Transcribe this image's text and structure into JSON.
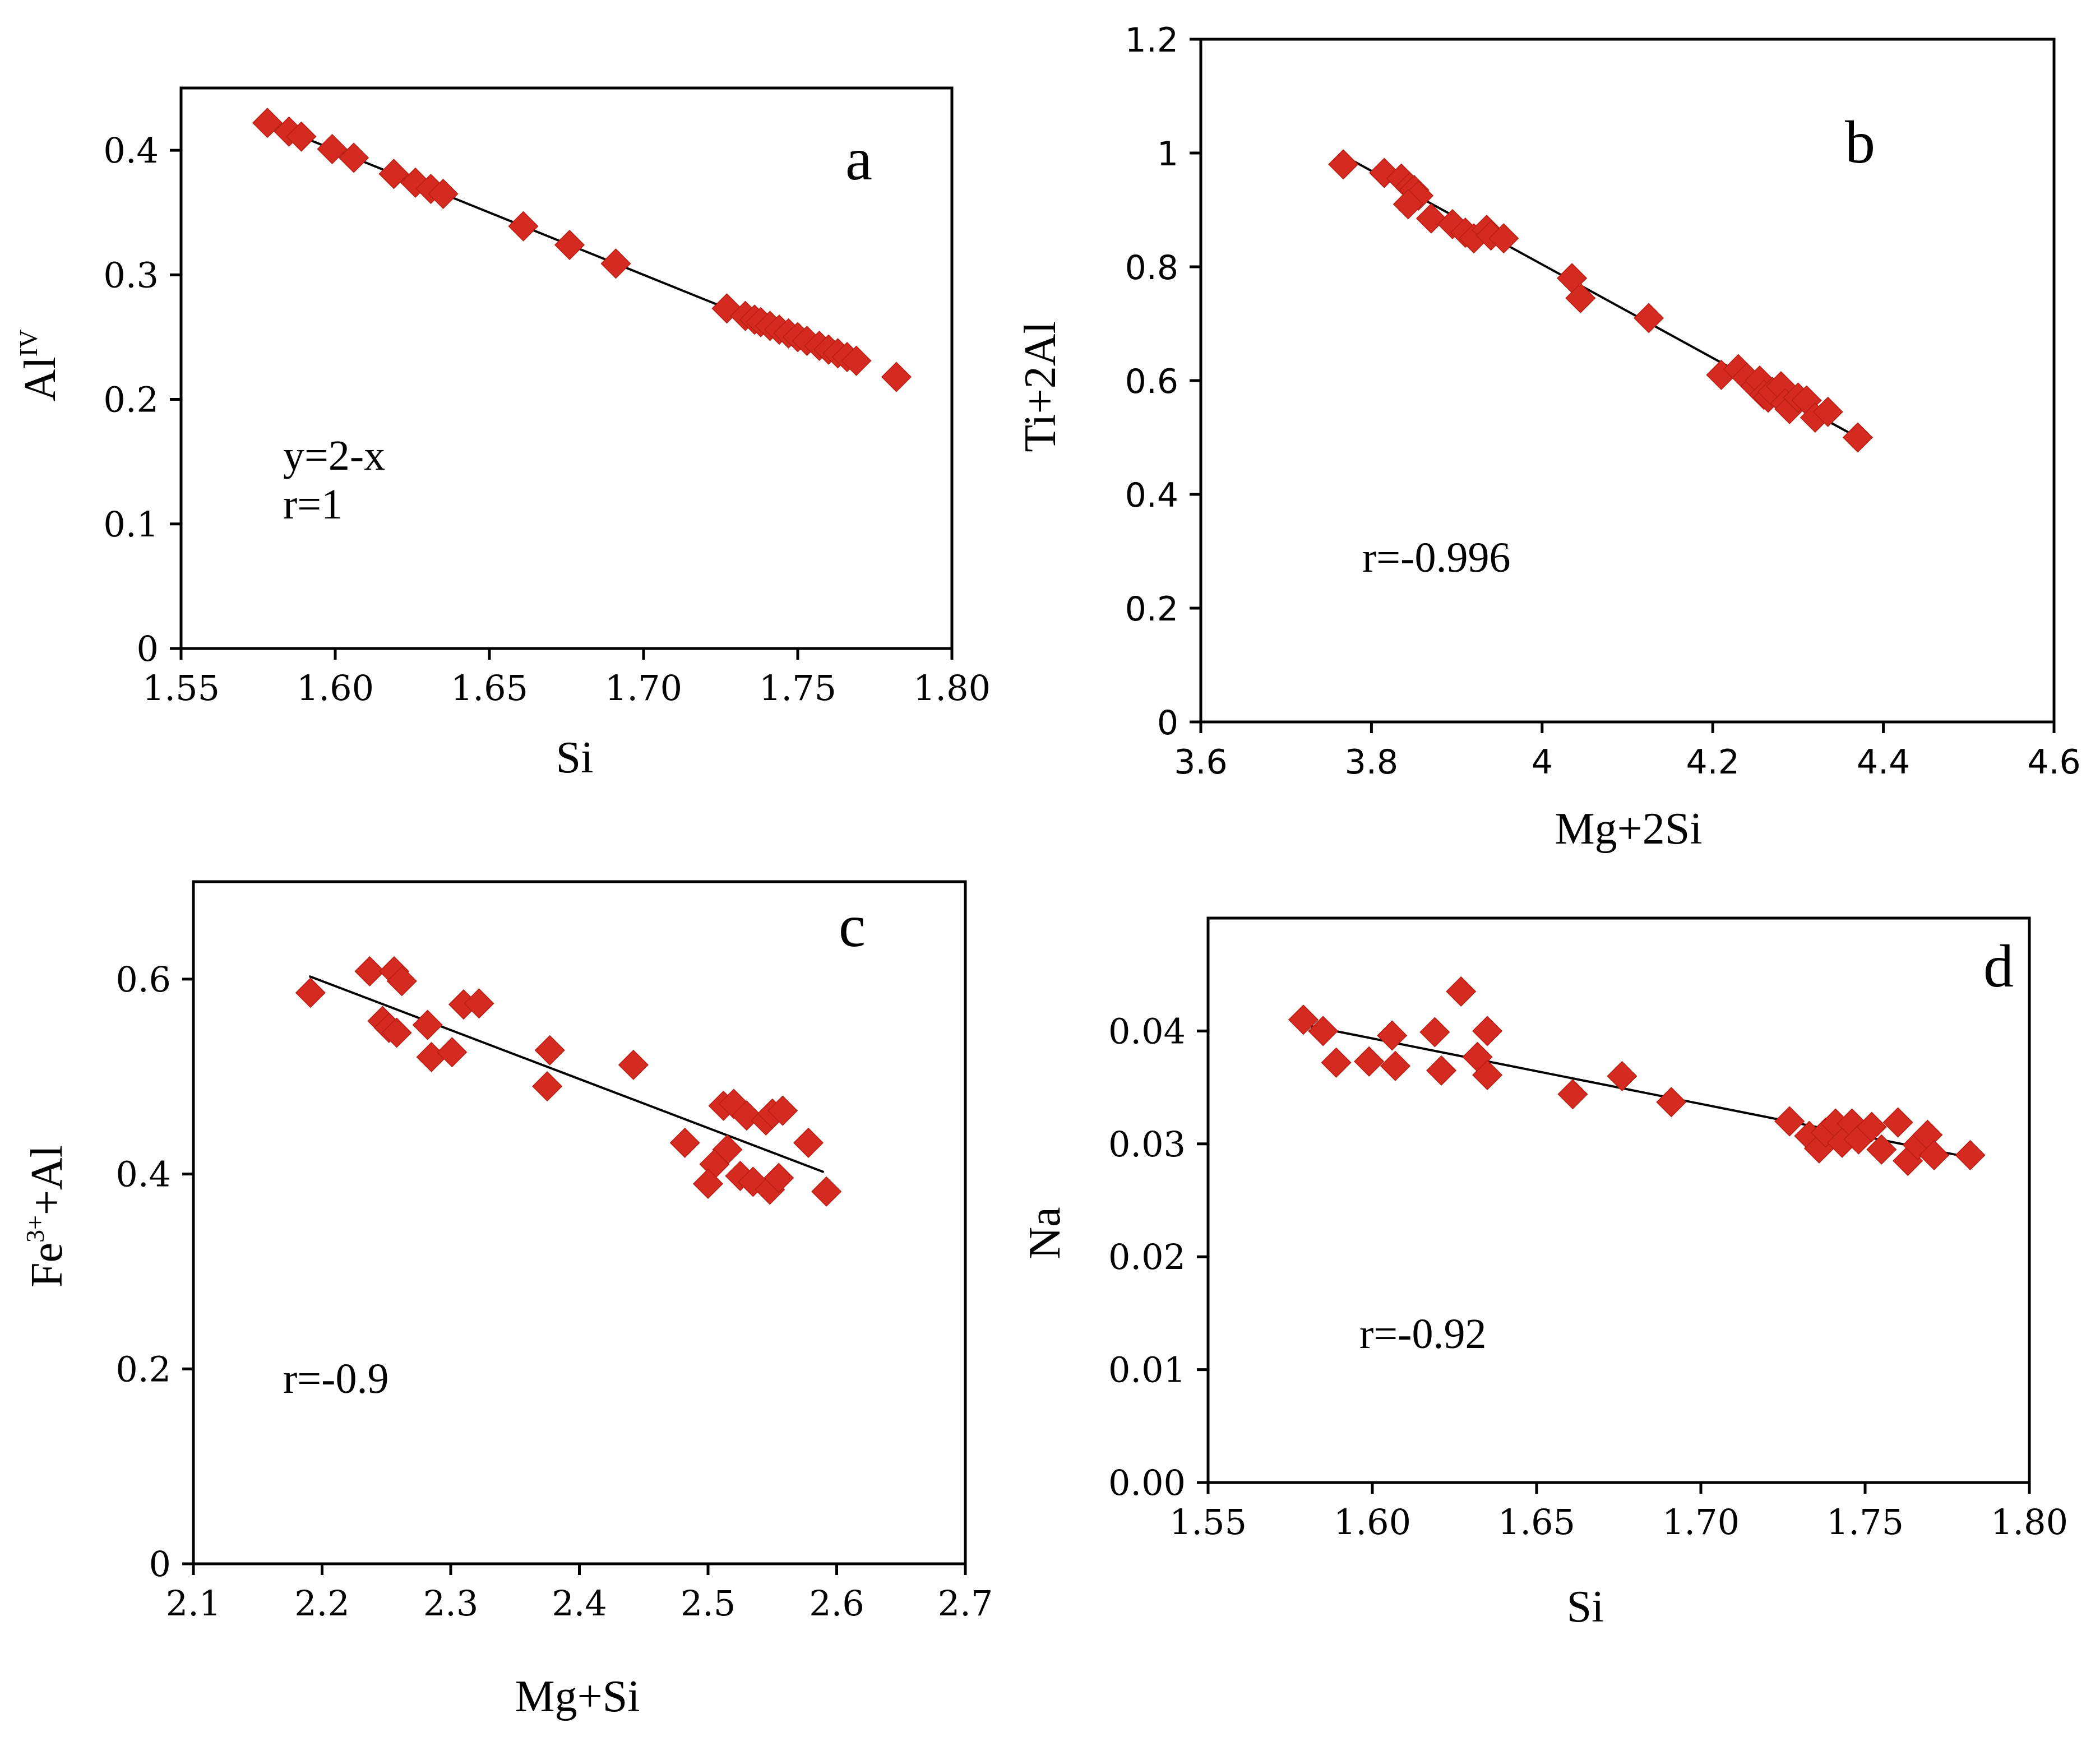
{
  "chart_data": [
    {
      "panel": "a",
      "type": "scatter",
      "panel_label": "a",
      "xlabel": "Si",
      "ylabel_main": "Al",
      "ylabel_sup": "IV",
      "xlim": [
        1.55,
        1.8
      ],
      "ylim": [
        0,
        0.45
      ],
      "xticks": [
        1.55,
        1.6,
        1.65,
        1.7,
        1.75,
        1.8
      ],
      "xtick_labels": [
        "1.55",
        "1.60",
        "1.65",
        "1.70",
        "1.75",
        "1.80"
      ],
      "yticks": [
        0,
        0.1,
        0.2,
        0.3,
        0.4
      ],
      "ytick_labels": [
        "0",
        "0.1",
        "0.2",
        "0.3",
        "0.4"
      ],
      "annotations": [
        "y=2-x",
        "r=1"
      ],
      "marker_color": "#d42a20",
      "trendline": {
        "x": [
          1.58,
          1.77
        ],
        "y": [
          0.42,
          0.23
        ]
      },
      "points": {
        "x": [
          1.578,
          1.585,
          1.589,
          1.599,
          1.606,
          1.619,
          1.626,
          1.631,
          1.635,
          1.661,
          1.676,
          1.691,
          1.727,
          1.733,
          1.736,
          1.738,
          1.741,
          1.744,
          1.747,
          1.75,
          1.753,
          1.757,
          1.76,
          1.763,
          1.766,
          1.769,
          1.782
        ],
        "y": [
          0.422,
          0.415,
          0.411,
          0.401,
          0.394,
          0.381,
          0.374,
          0.369,
          0.365,
          0.339,
          0.324,
          0.309,
          0.273,
          0.267,
          0.264,
          0.262,
          0.259,
          0.256,
          0.253,
          0.25,
          0.247,
          0.243,
          0.24,
          0.237,
          0.234,
          0.231,
          0.218
        ]
      }
    },
    {
      "panel": "b",
      "type": "scatter",
      "panel_label": "b",
      "xlabel": "Mg+2Si",
      "ylabel": "Ti+2Al",
      "xlim": [
        3.6,
        4.6
      ],
      "ylim": [
        0,
        1.2
      ],
      "xticks": [
        3.6,
        3.8,
        4.0,
        4.2,
        4.4,
        4.6
      ],
      "xtick_labels": [
        "3.6",
        "3.8",
        "4",
        "4.2",
        "4.4",
        "4.6"
      ],
      "yticks": [
        0,
        0.2,
        0.4,
        0.6,
        0.8,
        1.0,
        1.2
      ],
      "ytick_labels": [
        "0",
        "0.2",
        "0.4",
        "0.6",
        "0.8",
        "1",
        "1.2"
      ],
      "annotations": [
        "r=-0.996"
      ],
      "marker_color": "#d42a20",
      "trendline": {
        "x": [
          3.78,
          4.37
        ],
        "y": [
          0.985,
          0.5
        ]
      },
      "points": {
        "x": [
          3.767,
          3.815,
          3.835,
          3.845,
          3.85,
          3.855,
          3.843,
          3.87,
          3.895,
          3.91,
          3.92,
          3.935,
          3.94,
          3.955,
          4.035,
          4.045,
          4.125,
          4.21,
          4.23,
          4.24,
          4.25,
          4.255,
          4.26,
          4.265,
          4.27,
          4.28,
          4.285,
          4.29,
          4.3,
          4.31,
          4.32,
          4.335,
          4.37
        ],
        "y": [
          0.98,
          0.965,
          0.955,
          0.94,
          0.935,
          0.925,
          0.91,
          0.885,
          0.875,
          0.86,
          0.85,
          0.865,
          0.855,
          0.85,
          0.78,
          0.745,
          0.71,
          0.61,
          0.62,
          0.605,
          0.59,
          0.6,
          0.575,
          0.57,
          0.58,
          0.59,
          0.56,
          0.55,
          0.57,
          0.565,
          0.535,
          0.545,
          0.5
        ]
      }
    },
    {
      "panel": "c",
      "type": "scatter",
      "panel_label": "c",
      "xlabel": "Mg+Si",
      "ylabel_pre": "Fe",
      "ylabel_sup": "3+",
      "ylabel_post": "+Al",
      "xlim": [
        2.1,
        2.7
      ],
      "ylim": [
        0,
        0.7
      ],
      "xticks": [
        2.1,
        2.2,
        2.3,
        2.4,
        2.5,
        2.6,
        2.7
      ],
      "xtick_labels": [
        "2.1",
        "2.2",
        "2.3",
        "2.4",
        "2.5",
        "2.6",
        "2.7"
      ],
      "yticks": [
        0,
        0.2,
        0.4,
        0.6
      ],
      "ytick_labels": [
        "0",
        "0.2",
        "0.4",
        "0.6"
      ],
      "annotations": [
        "r=-0.9"
      ],
      "marker_color": "#d42a20",
      "trendline": {
        "x": [
          2.19,
          2.59
        ],
        "y": [
          0.603,
          0.402
        ]
      },
      "points": {
        "x": [
          2.191,
          2.237,
          2.247,
          2.256,
          2.262,
          2.252,
          2.258,
          2.282,
          2.285,
          2.301,
          2.31,
          2.322,
          2.377,
          2.375,
          2.442,
          2.482,
          2.512,
          2.52,
          2.53,
          2.545,
          2.55,
          2.558,
          2.515,
          2.505,
          2.5,
          2.525,
          2.535,
          2.548,
          2.555,
          2.578,
          2.592
        ],
        "y": [
          0.586,
          0.608,
          0.557,
          0.608,
          0.598,
          0.55,
          0.545,
          0.553,
          0.52,
          0.525,
          0.574,
          0.575,
          0.527,
          0.49,
          0.512,
          0.432,
          0.47,
          0.472,
          0.46,
          0.455,
          0.462,
          0.465,
          0.425,
          0.41,
          0.39,
          0.398,
          0.392,
          0.384,
          0.396,
          0.432,
          0.382
        ]
      }
    },
    {
      "panel": "d",
      "type": "scatter",
      "panel_label": "d",
      "xlabel": "Si",
      "ylabel": "Na",
      "xlim": [
        1.55,
        1.8
      ],
      "ylim": [
        0,
        0.05
      ],
      "xticks": [
        1.55,
        1.6,
        1.65,
        1.7,
        1.75,
        1.8
      ],
      "xtick_labels": [
        "1.55",
        "1.60",
        "1.65",
        "1.70",
        "1.75",
        "1.80"
      ],
      "yticks": [
        0,
        0.01,
        0.02,
        0.03,
        0.04
      ],
      "ytick_labels": [
        "0.00",
        "0.01",
        "0.02",
        "0.03",
        "0.04"
      ],
      "annotations": [
        "r=-0.92"
      ],
      "marker_color": "#d42a20",
      "trendline": {
        "x": [
          1.58,
          1.78
        ],
        "y": [
          0.0405,
          0.0289
        ]
      },
      "points": {
        "x": [
          1.579,
          1.585,
          1.589,
          1.599,
          1.606,
          1.607,
          1.619,
          1.621,
          1.627,
          1.632,
          1.635,
          1.635,
          1.661,
          1.676,
          1.691,
          1.727,
          1.733,
          1.736,
          1.738,
          1.741,
          1.743,
          1.746,
          1.748,
          1.752,
          1.755,
          1.76,
          1.763,
          1.766,
          1.769,
          1.771,
          1.782
        ],
        "y": [
          0.041,
          0.04,
          0.0372,
          0.0373,
          0.0396,
          0.0369,
          0.0399,
          0.0365,
          0.0435,
          0.0377,
          0.04,
          0.0361,
          0.0344,
          0.036,
          0.0337,
          0.032,
          0.0307,
          0.0296,
          0.031,
          0.0318,
          0.0301,
          0.0318,
          0.0304,
          0.0315,
          0.0295,
          0.0319,
          0.0285,
          0.0299,
          0.0308,
          0.029,
          0.029
        ]
      }
    }
  ]
}
